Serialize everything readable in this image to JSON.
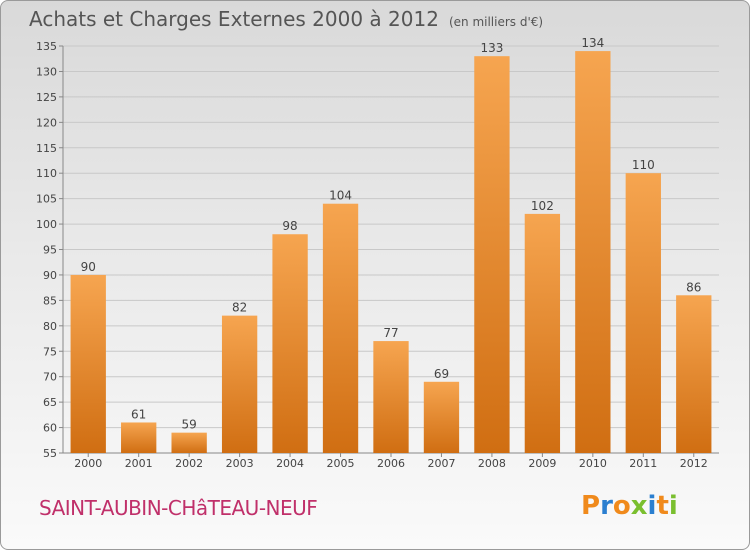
{
  "header": {
    "title": "Achats et Charges Externes 2000 à 2012",
    "unit": "(en milliers d'€)"
  },
  "footer": {
    "commune": "SAINT-AUBIN-CHâTEAU-NEUF",
    "brand": "Proxiti"
  },
  "colors": {
    "bar_light": "#f6a550",
    "bar_dark": "#d06e12",
    "commune_text": "#c0306a",
    "brand_letters": [
      "#f08a1c",
      "#2b7fd0",
      "#f08a1c",
      "#7abf2f",
      "#2b7fd0",
      "#f08a1c",
      "#7abf2f"
    ]
  },
  "chart_data": {
    "type": "bar",
    "title": "Achats et Charges Externes 2000 à 2012",
    "subtitle": "(en milliers d'€)",
    "categories": [
      "2000",
      "2001",
      "2002",
      "2003",
      "2004",
      "2005",
      "2006",
      "2007",
      "2008",
      "2009",
      "2010",
      "2011",
      "2012"
    ],
    "values": [
      90,
      61,
      59,
      82,
      98,
      104,
      77,
      69,
      133,
      102,
      134,
      110,
      86
    ],
    "ylim": [
      55,
      135
    ],
    "yticks": [
      55,
      60,
      65,
      70,
      75,
      80,
      85,
      90,
      95,
      100,
      105,
      110,
      115,
      120,
      125,
      130,
      135
    ],
    "grid": true
  }
}
